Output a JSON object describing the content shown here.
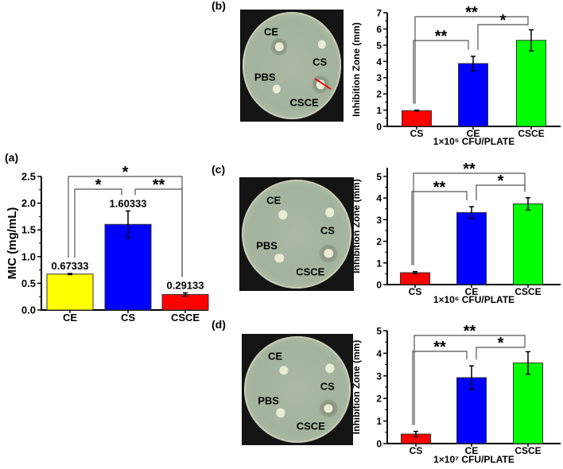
{
  "panel_labels": {
    "a": "(a)",
    "b": "(b)",
    "c": "(c)",
    "d": "(d)"
  },
  "plates": {
    "labels": {
      "ce": "CE",
      "cs": "CS",
      "pbs": "PBS",
      "csce": "CSCE"
    }
  },
  "chart_data": [
    {
      "panel": "(a)",
      "type": "bar",
      "categories": [
        "CE",
        "CS",
        "CSCE"
      ],
      "values": [
        0.67333,
        1.60333,
        0.29133
      ],
      "errors": [
        0.01,
        0.25,
        0.03
      ],
      "data_labels": [
        "0.67333",
        "1.60333",
        "0.29133"
      ],
      "colors": [
        "#ffff00",
        "#0000ff",
        "#ff0000"
      ],
      "ylabel": "MIC (mg/mL)",
      "xlabel": "",
      "ylim": [
        0,
        2.5
      ],
      "yticks": [
        "0.0",
        "0.5",
        "1.0",
        "1.5",
        "2.0",
        "2.5"
      ],
      "significance": [
        {
          "from": "CE",
          "to": "CSCE",
          "label": "*"
        },
        {
          "from": "CE",
          "to": "CS",
          "label": "*"
        },
        {
          "from": "CS",
          "to": "CSCE",
          "label": "**"
        }
      ]
    },
    {
      "panel": "(b)",
      "type": "bar",
      "categories": [
        "CS",
        "CE",
        "CSCE"
      ],
      "values": [
        0.97,
        3.87,
        5.3
      ],
      "errors": [
        0.03,
        0.45,
        0.65
      ],
      "colors": [
        "#ff0000",
        "#0000ff",
        "#00ff00"
      ],
      "ylabel": "Inhibition Zone (mm)",
      "xlabel": "1×10⁵ CFU/PLATE",
      "ylim": [
        0,
        7
      ],
      "yticks": [
        "0",
        "1",
        "2",
        "3",
        "4",
        "5",
        "6",
        "7"
      ],
      "significance": [
        {
          "from": "CS",
          "to": "CSCE",
          "label": "**"
        },
        {
          "from": "CE",
          "to": "CSCE",
          "label": "*"
        },
        {
          "from": "CS",
          "to": "CE",
          "label": "**"
        }
      ]
    },
    {
      "panel": "(c)",
      "type": "bar",
      "categories": [
        "CS",
        "CE",
        "CSCE"
      ],
      "values": [
        0.55,
        3.33,
        3.73
      ],
      "errors": [
        0.05,
        0.27,
        0.28
      ],
      "colors": [
        "#ff0000",
        "#0000ff",
        "#00ff00"
      ],
      "ylabel": "Inhibition Zone (mm)",
      "xlabel": "1×10⁶ CFU/PLATE",
      "ylim": [
        0,
        5.4
      ],
      "yticks": [
        "0",
        "1",
        "2",
        "3",
        "4",
        "5"
      ],
      "significance": [
        {
          "from": "CS",
          "to": "CSCE",
          "label": "**"
        },
        {
          "from": "CE",
          "to": "CSCE",
          "label": "*"
        },
        {
          "from": "CS",
          "to": "CE",
          "label": "**"
        }
      ]
    },
    {
      "panel": "(d)",
      "type": "bar",
      "categories": [
        "CS",
        "CE",
        "CSCE"
      ],
      "values": [
        0.42,
        2.92,
        3.57
      ],
      "errors": [
        0.12,
        0.52,
        0.5
      ],
      "colors": [
        "#ff0000",
        "#0000ff",
        "#00ff00"
      ],
      "ylabel": "Inhibition Zone (mm)",
      "xlabel": "1×10⁷ CFU/PLATE",
      "ylim": [
        0,
        5
      ],
      "yticks": [
        "0",
        "1",
        "2",
        "3",
        "4",
        "5"
      ],
      "significance": [
        {
          "from": "CS",
          "to": "CSCE",
          "label": "**"
        },
        {
          "from": "CE",
          "to": "CSCE",
          "label": "*"
        },
        {
          "from": "CS",
          "to": "CE",
          "label": "**"
        }
      ]
    }
  ]
}
